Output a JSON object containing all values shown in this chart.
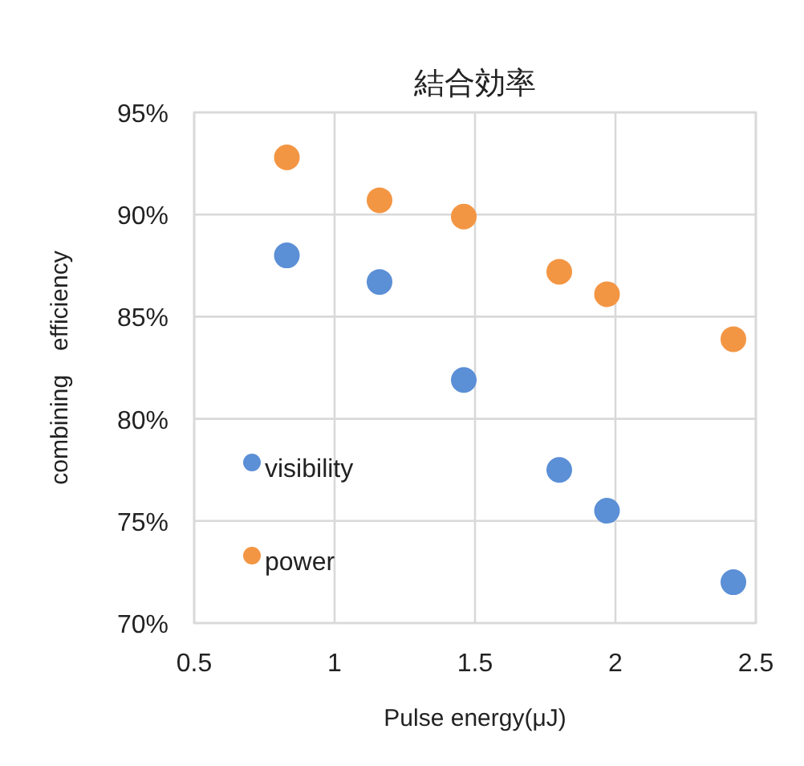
{
  "chart_data": {
    "type": "scatter",
    "title": "結合効率",
    "xlabel": "Pulse energy(μJ)",
    "ylabel": "combining　efficiency",
    "xlim": [
      0.5,
      2.5
    ],
    "xticks": [
      0.5,
      1,
      1.5,
      2,
      2.5
    ],
    "ylim": [
      70,
      95
    ],
    "yticks": [
      {
        "value": 70,
        "label": "70%"
      },
      {
        "value": 75,
        "label": "75%"
      },
      {
        "value": 80,
        "label": "80%"
      },
      {
        "value": 85,
        "label": "85%"
      },
      {
        "value": 90,
        "label": "90%"
      },
      {
        "value": 95,
        "label": "95%"
      }
    ],
    "grid": true,
    "legend": "bottom left",
    "marker": "circle",
    "series": [
      {
        "name": "visibility",
        "color": "#5b8fd6",
        "x": [
          0.83,
          1.16,
          1.46,
          1.8,
          1.97,
          2.42
        ],
        "values": [
          88.0,
          86.7,
          81.9,
          77.5,
          75.5,
          72.0
        ]
      },
      {
        "name": "power",
        "color": "#f39644",
        "x": [
          0.83,
          1.16,
          1.46,
          1.8,
          1.97,
          2.42
        ],
        "values": [
          92.8,
          90.7,
          89.9,
          87.2,
          86.1,
          83.9
        ]
      }
    ]
  }
}
